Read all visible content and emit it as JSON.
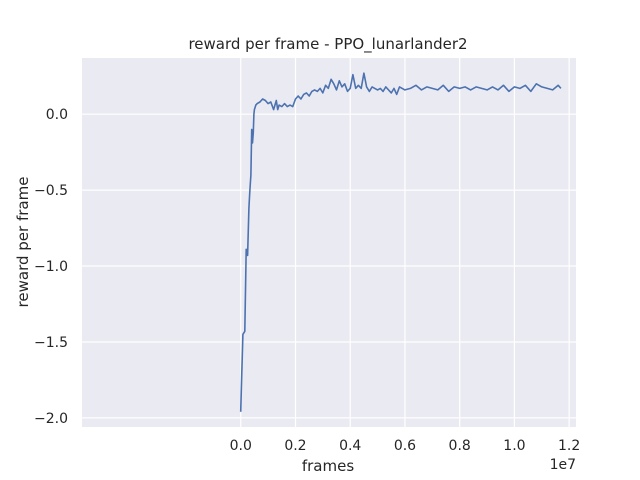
{
  "chart_data": {
    "type": "line",
    "title": "reward per frame - PPO_lunarlander2",
    "xlabel": "frames",
    "ylabel": "reward per frame",
    "x_offset_label": "1e7",
    "xlim": [
      -5800000,
      12250000
    ],
    "ylim": [
      -2.06,
      0.37
    ],
    "xticks": [
      0,
      2000000,
      4000000,
      6000000,
      8000000,
      10000000,
      12000000
    ],
    "xtick_labels": [
      "0.0",
      "0.2",
      "0.4",
      "0.6",
      "0.8",
      "1.0",
      "1.2"
    ],
    "yticks": [
      0.0,
      -0.5,
      -1.0,
      -1.5,
      -2.0
    ],
    "ytick_labels": [
      "0.0",
      "−0.5",
      "−1.0",
      "−1.5",
      "−2.0"
    ],
    "grid": true,
    "colors": {
      "background": "#EAEAF2",
      "grid": "#FFFFFF",
      "line": "#4C72B0"
    },
    "series": [
      {
        "x": [
          0,
          80000,
          150000,
          200000,
          250000,
          300000,
          330000,
          370000,
          400000,
          430000,
          460000,
          480000,
          500000,
          550000,
          600000,
          700000,
          800000,
          900000,
          1000000,
          1100000,
          1200000,
          1300000,
          1350000,
          1400000,
          1500000,
          1600000,
          1700000,
          1800000,
          1900000,
          2000000,
          2100000,
          2200000,
          2300000,
          2400000,
          2500000,
          2600000,
          2700000,
          2800000,
          2900000,
          3000000,
          3100000,
          3200000,
          3300000,
          3400000,
          3500000,
          3600000,
          3700000,
          3800000,
          3900000,
          4000000,
          4100000,
          4200000,
          4300000,
          4400000,
          4500000,
          4600000,
          4700000,
          4800000,
          4900000,
          5000000,
          5100000,
          5200000,
          5300000,
          5400000,
          5500000,
          5600000,
          5700000,
          5800000,
          5900000,
          6000000,
          6200000,
          6400000,
          6600000,
          6800000,
          7000000,
          7200000,
          7400000,
          7600000,
          7800000,
          8000000,
          8200000,
          8400000,
          8600000,
          8800000,
          9000000,
          9200000,
          9400000,
          9600000,
          9800000,
          10000000,
          10200000,
          10400000,
          10600000,
          10800000,
          11000000,
          11200000,
          11400000,
          11600000,
          11700000
        ],
        "y": [
          -1.96,
          -1.45,
          -1.43,
          -0.89,
          -0.93,
          -0.62,
          -0.51,
          -0.4,
          -0.1,
          -0.19,
          -0.12,
          0.0,
          0.03,
          0.06,
          0.07,
          0.08,
          0.1,
          0.09,
          0.07,
          0.08,
          0.03,
          0.09,
          0.03,
          0.06,
          0.05,
          0.07,
          0.05,
          0.06,
          0.05,
          0.1,
          0.12,
          0.1,
          0.13,
          0.14,
          0.12,
          0.15,
          0.16,
          0.15,
          0.17,
          0.14,
          0.19,
          0.17,
          0.23,
          0.2,
          0.16,
          0.22,
          0.18,
          0.2,
          0.15,
          0.17,
          0.26,
          0.17,
          0.19,
          0.17,
          0.27,
          0.18,
          0.15,
          0.18,
          0.17,
          0.16,
          0.17,
          0.15,
          0.18,
          0.16,
          0.14,
          0.17,
          0.13,
          0.18,
          0.17,
          0.16,
          0.17,
          0.19,
          0.16,
          0.18,
          0.17,
          0.16,
          0.19,
          0.15,
          0.18,
          0.17,
          0.18,
          0.16,
          0.18,
          0.17,
          0.16,
          0.18,
          0.16,
          0.19,
          0.15,
          0.18,
          0.17,
          0.19,
          0.15,
          0.2,
          0.18,
          0.17,
          0.16,
          0.19,
          0.17
        ]
      }
    ]
  }
}
